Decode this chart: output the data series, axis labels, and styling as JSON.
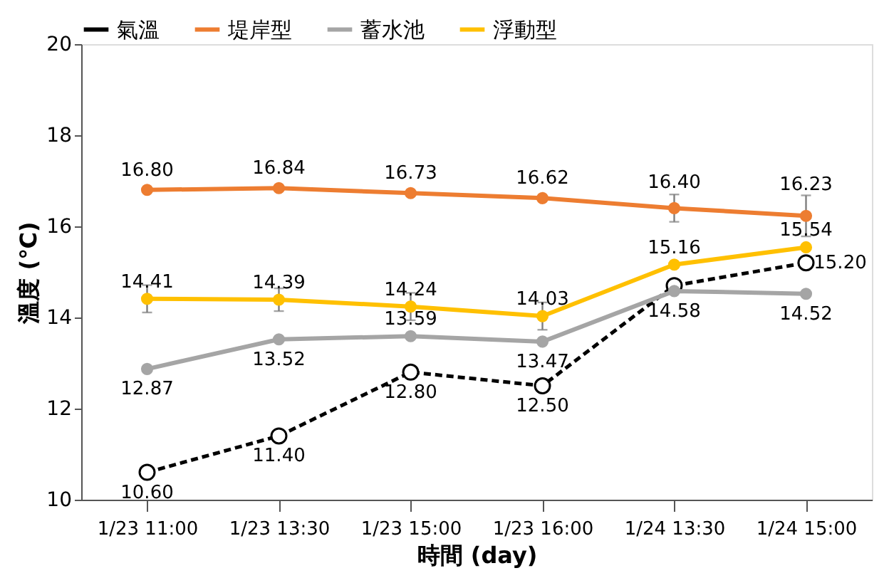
{
  "chart_data": {
    "type": "line",
    "xlabel": "時間 (day)",
    "ylabel": "溫度 (℃)",
    "categories": [
      "1/23 11:00",
      "1/23 13:30",
      "1/23 15:00",
      "1/23 16:00",
      "1/24 13:30",
      "1/24 15:00"
    ],
    "ylim": [
      10,
      20
    ],
    "yticks": [
      10,
      12,
      14,
      16,
      18,
      20
    ],
    "grid": false,
    "legend": "top",
    "series": [
      {
        "name": "氣溫",
        "color": "#000000",
        "line_style": "dashed",
        "marker": "circle",
        "values": [
          10.6,
          11.4,
          12.8,
          12.5,
          14.7,
          15.2
        ],
        "value_labels": [
          "10.60",
          "11.40",
          "12.80",
          "12.50",
          null,
          "15.20"
        ]
      },
      {
        "name": "堤岸型",
        "color": "#ed7d31",
        "line_style": "solid",
        "marker": "circle",
        "values": [
          16.8,
          16.84,
          16.73,
          16.62,
          16.4,
          16.23
        ],
        "errors": [
          null,
          null,
          null,
          null,
          0.3,
          0.45
        ],
        "value_labels": [
          "16.80",
          "16.84",
          "16.73",
          "16.62",
          "16.40",
          "16.23"
        ]
      },
      {
        "name": "蓄水池",
        "color": "#a5a5a5",
        "line_style": "solid",
        "marker": "circle",
        "values": [
          12.87,
          13.52,
          13.59,
          13.47,
          14.58,
          14.52
        ],
        "value_labels": [
          "12.87",
          "13.52",
          "13.59",
          "13.47",
          "14.58",
          "14.52"
        ]
      },
      {
        "name": "浮動型",
        "color": "#ffc000",
        "line_style": "solid",
        "marker": "circle",
        "values": [
          14.41,
          14.39,
          14.24,
          14.03,
          15.16,
          15.54
        ],
        "errors": [
          0.3,
          0.25,
          0.3,
          0.3,
          null,
          null
        ],
        "value_labels": [
          "14.41",
          "14.39",
          "14.24",
          "14.03",
          "15.16",
          "15.54"
        ]
      }
    ]
  }
}
